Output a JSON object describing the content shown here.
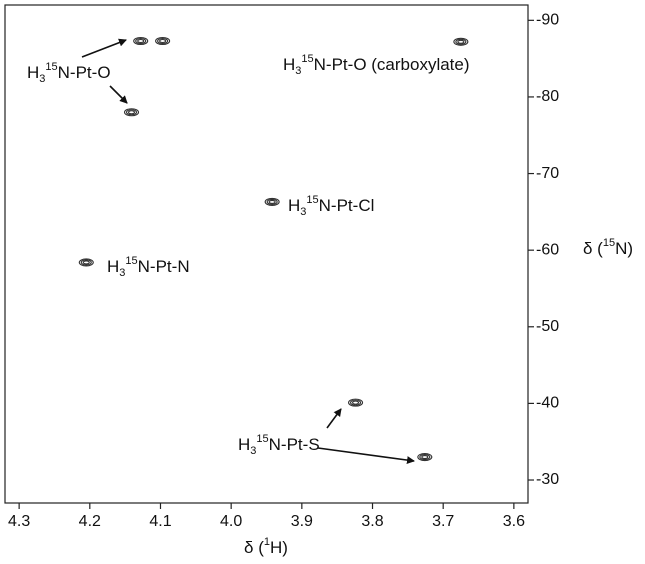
{
  "chart_data": {
    "type": "scatter",
    "x": [
      4.128,
      4.097,
      4.141,
      3.675,
      3.942,
      4.205,
      3.824,
      3.726
    ],
    "values": [
      -87.3,
      -87.3,
      -78.0,
      -87.2,
      -66.3,
      -58.4,
      -40.1,
      -33.0
    ],
    "color": "#333333",
    "xlim": [
      4.32,
      3.58
    ],
    "ylim": [
      -27,
      -92
    ],
    "xticks": [
      4.3,
      4.2,
      4.1,
      {
        "value": 4,
        "label": "4.0"
      },
      3.9,
      3.8,
      3.7,
      3.6
    ],
    "yticks": [
      -90,
      -80,
      -70,
      -60,
      -50,
      -40,
      -30
    ],
    "x_label": [
      "δ (",
      "1",
      "H)"
    ],
    "y_label": [
      "δ (",
      "15",
      "N)"
    ],
    "annotations": [
      [
        "H",
        "3",
        "15",
        "N-Pt-O"
      ],
      [
        "H",
        "3",
        "15",
        "N-Pt-O (carboxylate)"
      ],
      [
        "H",
        "3",
        "15",
        "N-Pt-Cl"
      ],
      [
        "H",
        "3",
        "15",
        "N-Pt-N"
      ],
      [
        "H",
        "3",
        "15",
        "N-Pt-S"
      ]
    ]
  }
}
